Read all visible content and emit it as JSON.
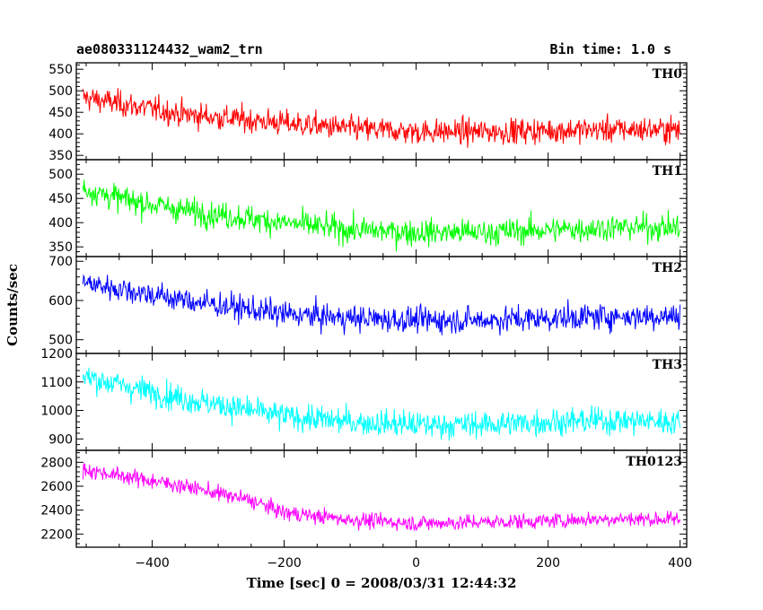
{
  "chart_data": {
    "type": "line",
    "title": "ae080331124432_wam2_trn",
    "bin_time": "Bin time: 1.0 s",
    "xlabel": "Time [sec] 0 = 2008/03/31 12:44:32",
    "ylabel": "Counts/sec",
    "xlim": [
      -515,
      410
    ],
    "xticks": [
      -400,
      -200,
      0,
      200,
      400
    ],
    "x_start": -505,
    "x_end": 400,
    "x_step": 1,
    "grid": false,
    "panels": [
      {
        "name": "TH0",
        "color": "#ff0000",
        "ylim": [
          340,
          565
        ],
        "yticks": [
          350,
          400,
          450,
          500,
          550
        ],
        "trend": [
          [
            -505,
            485
          ],
          [
            -450,
            470
          ],
          [
            -350,
            445
          ],
          [
            -200,
            425
          ],
          [
            -100,
            412
          ],
          [
            0,
            405
          ],
          [
            100,
            405
          ],
          [
            200,
            408
          ],
          [
            300,
            410
          ],
          [
            400,
            410
          ]
        ],
        "noise": 25
      },
      {
        "name": "TH1",
        "color": "#00ff00",
        "ylim": [
          330,
          530
        ],
        "yticks": [
          350,
          400,
          450,
          500
        ],
        "trend": [
          [
            -505,
            470
          ],
          [
            -450,
            450
          ],
          [
            -350,
            425
          ],
          [
            -200,
            400
          ],
          [
            -100,
            385
          ],
          [
            0,
            380
          ],
          [
            100,
            380
          ],
          [
            200,
            385
          ],
          [
            300,
            390
          ],
          [
            400,
            390
          ]
        ],
        "noise": 23
      },
      {
        "name": "TH2",
        "color": "#0000ff",
        "ylim": [
          465,
          712
        ],
        "yticks": [
          500,
          600,
          700
        ],
        "trend": [
          [
            -505,
            645
          ],
          [
            -450,
            630
          ],
          [
            -350,
            600
          ],
          [
            -200,
            565
          ],
          [
            -100,
            555
          ],
          [
            0,
            550
          ],
          [
            100,
            550
          ],
          [
            200,
            555
          ],
          [
            300,
            560
          ],
          [
            400,
            560
          ]
        ],
        "noise": 28
      },
      {
        "name": "TH3",
        "color": "#00ffff",
        "ylim": [
          860,
          1200
        ],
        "yticks": [
          900,
          1000,
          1100,
          1200
        ],
        "trend": [
          [
            -505,
            1120
          ],
          [
            -450,
            1090
          ],
          [
            -350,
            1040
          ],
          [
            -250,
            1000
          ],
          [
            -200,
            980
          ],
          [
            -100,
            960
          ],
          [
            0,
            950
          ],
          [
            100,
            950
          ],
          [
            200,
            960
          ],
          [
            300,
            965
          ],
          [
            400,
            960
          ]
        ],
        "noise": 40
      },
      {
        "name": "TH0123",
        "color": "#ff00ff",
        "ylim": [
          2090,
          2900
        ],
        "yticks": [
          2200,
          2400,
          2600,
          2800
        ],
        "trend": [
          [
            -505,
            2740
          ],
          [
            -450,
            2690
          ],
          [
            -350,
            2600
          ],
          [
            -250,
            2480
          ],
          [
            -200,
            2380
          ],
          [
            -100,
            2320
          ],
          [
            0,
            2290
          ],
          [
            100,
            2300
          ],
          [
            200,
            2310
          ],
          [
            300,
            2330
          ],
          [
            400,
            2320
          ]
        ],
        "noise": 55
      }
    ]
  }
}
